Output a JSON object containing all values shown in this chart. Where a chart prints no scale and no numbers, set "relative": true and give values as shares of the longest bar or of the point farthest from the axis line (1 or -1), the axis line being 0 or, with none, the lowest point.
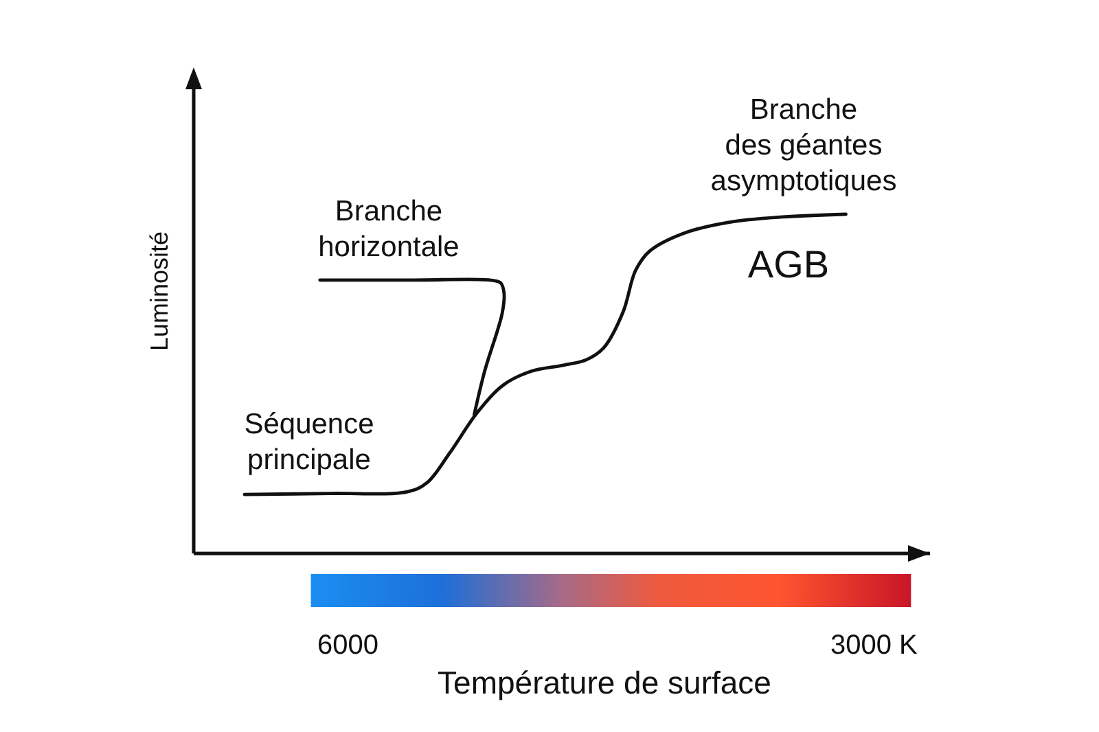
{
  "chart_data": {
    "type": "line",
    "relative": true,
    "xlabel": "Température de surface",
    "ylabel": "Luminosité",
    "xlim": [
      6880,
      2680
    ],
    "xticks": [
      6000,
      {
        "value": 3000,
        "label": "3000 K"
      }
    ],
    "series": [
      {
        "color": "#111111",
        "x": [
          6590,
          6100,
          5660,
          5550,
          5420,
          5260,
          5110,
          4950,
          4770,
          4640,
          4540,
          4430,
          4360,
          4280,
          4090,
          3830,
          3520,
          3160
        ],
        "values": [
          0.174,
          0.177,
          0.182,
          0.208,
          0.296,
          0.417,
          0.498,
          0.538,
          0.555,
          0.571,
          0.607,
          0.713,
          0.834,
          0.891,
          0.943,
          0.976,
          0.992,
          1.0
        ]
      },
      {
        "color": "#111111",
        "x": [
          6160,
          5630,
          5190,
          5130,
          5110,
          5120,
          5220,
          5280
        ],
        "values": [
          0.806,
          0.806,
          0.806,
          0.798,
          0.769,
          0.709,
          0.538,
          0.409
        ]
      }
    ],
    "annotations": [
      "Branche\nhorizontale",
      "Séquence\nprincipale",
      "Branche\ndes géantes\nasymptotiques",
      "AGB"
    ]
  }
}
